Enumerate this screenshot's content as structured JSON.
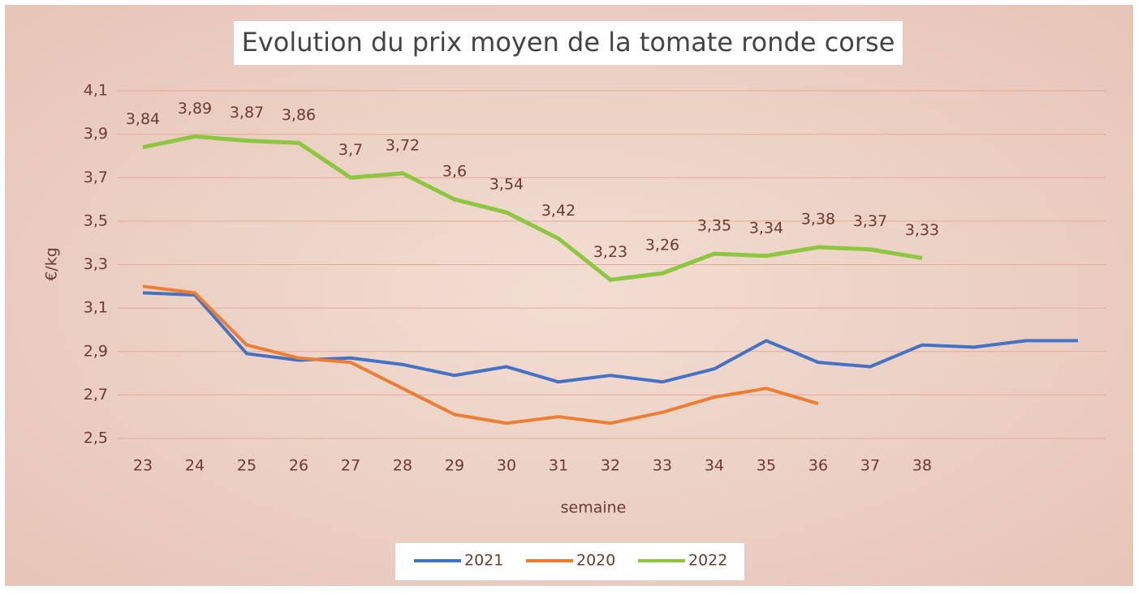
{
  "chart_data": {
    "type": "line",
    "title": "Evolution du prix moyen de la tomate ronde corse",
    "y_label": "€/kg",
    "x_label": "semaine",
    "categories": [
      "23",
      "24",
      "25",
      "26",
      "27",
      "28",
      "29",
      "30",
      "31",
      "32",
      "33",
      "34",
      "35",
      "36",
      "37",
      "38",
      null,
      null,
      null
    ],
    "ylim": [
      2.5,
      4.1
    ],
    "yticks": [
      {
        "value": 2.5,
        "label": "2,5"
      },
      {
        "value": 2.7,
        "label": "2,7"
      },
      {
        "value": 2.9,
        "label": "2,9"
      },
      {
        "value": 3.1,
        "label": "3,1"
      },
      {
        "value": 3.3,
        "label": "3,3"
      },
      {
        "value": 3.5,
        "label": "3,5"
      },
      {
        "value": 3.7,
        "label": "3,7"
      },
      {
        "value": 3.9,
        "label": "3,9"
      },
      {
        "value": 4.1,
        "label": "4,1"
      }
    ],
    "grid": true,
    "legend": "bottom",
    "series": [
      {
        "name": "2021",
        "color": "#4472c4",
        "values": [
          3.17,
          3.16,
          2.89,
          2.86,
          2.87,
          2.84,
          2.79,
          2.83,
          2.76,
          2.79,
          2.76,
          2.82,
          2.95,
          2.85,
          2.83,
          2.93,
          2.92,
          2.95,
          2.95
        ]
      },
      {
        "name": "2020",
        "color": "#ed7d31",
        "values": [
          3.2,
          3.17,
          2.93,
          2.87,
          2.85,
          2.73,
          2.61,
          2.57,
          2.6,
          2.57,
          2.62,
          2.69,
          2.73,
          2.66,
          null,
          null,
          null,
          null,
          null
        ]
      },
      {
        "name": "2022",
        "color": "#8dc63f",
        "values": [
          3.84,
          3.89,
          3.87,
          3.86,
          3.7,
          3.72,
          3.6,
          3.54,
          3.42,
          3.23,
          3.26,
          3.35,
          3.34,
          3.38,
          3.37,
          3.33,
          null,
          null,
          null
        ],
        "value_labels": [
          "3,84",
          "3,89",
          "3,87",
          "3,86",
          "3,7",
          "3,72",
          "3,6",
          "3,54",
          "3,42",
          "3,23",
          "3,26",
          "3,35",
          "3,34",
          "3,38",
          "3,37",
          "3,33",
          null,
          null,
          null
        ]
      }
    ]
  }
}
